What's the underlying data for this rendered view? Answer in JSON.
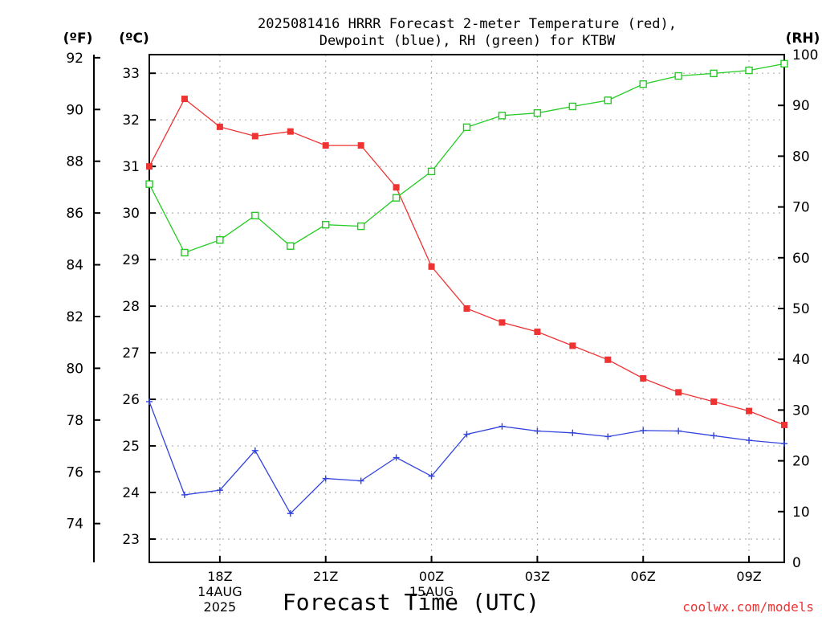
{
  "chart_data": {
    "type": "line",
    "title_line1": "2025081416 HRRR Forecast 2-meter Temperature (red),",
    "title_line2": "Dewpoint (blue), RH (green) for KTBW",
    "xlabel": "Forecast Time (UTC)",
    "watermark": "coolwx.com/models",
    "unit_f": "(ºF)",
    "unit_c": "(ºC)",
    "unit_rh": "(RH)",
    "x": [
      "16Z",
      "17Z",
      "18Z",
      "19Z",
      "20Z",
      "21Z",
      "22Z",
      "23Z",
      "00Z",
      "01Z",
      "02Z",
      "03Z",
      "04Z",
      "05Z",
      "06Z",
      "07Z",
      "08Z",
      "09Z",
      "10Z"
    ],
    "x_ticks": [
      {
        "index": 2,
        "label": "18Z",
        "date1": "14AUG",
        "date2": "2025"
      },
      {
        "index": 5,
        "label": "21Z"
      },
      {
        "index": 8,
        "label": "00Z",
        "date1": "15AUG"
      },
      {
        "index": 11,
        "label": "03Z"
      },
      {
        "index": 14,
        "label": "06Z"
      },
      {
        "index": 17,
        "label": "09Z"
      }
    ],
    "series": [
      {
        "name": "Temperature",
        "axis": "c",
        "color": "#ee3333",
        "marker": "filled-square",
        "values": [
          31.0,
          32.45,
          31.85,
          31.65,
          31.75,
          31.45,
          31.45,
          30.55,
          28.85,
          27.95,
          27.65,
          27.45,
          27.15,
          26.85,
          26.45,
          26.15,
          25.95,
          25.75,
          25.45
        ]
      },
      {
        "name": "Dewpoint",
        "axis": "c",
        "color": "#3344dd",
        "marker": "plus",
        "values": [
          25.95,
          23.95,
          24.05,
          24.9,
          23.55,
          24.3,
          24.25,
          24.75,
          24.35,
          25.25,
          25.42,
          25.32,
          25.28,
          25.2,
          25.33,
          25.32,
          25.22,
          25.12,
          25.05
        ]
      },
      {
        "name": "RH",
        "axis": "rh",
        "color": "#22cc22",
        "marker": "open-square",
        "values": [
          74.5,
          61.0,
          63.5,
          68.3,
          62.3,
          66.5,
          66.2,
          71.8,
          77.0,
          85.7,
          88.0,
          88.5,
          89.8,
          91.0,
          94.2,
          95.8,
          96.3,
          96.9,
          98.2
        ]
      }
    ],
    "y_c": {
      "ticks": [
        23,
        24,
        25,
        26,
        27,
        28,
        29,
        30,
        31,
        32,
        33
      ],
      "range": [
        22.5,
        33.4
      ]
    },
    "y_f": {
      "ticks": [
        74,
        76,
        78,
        80,
        82,
        84,
        86,
        88,
        90,
        92
      ]
    },
    "y_rh": {
      "ticks": [
        0,
        10,
        20,
        30,
        40,
        50,
        60,
        70,
        80,
        90,
        100
      ],
      "range": [
        0,
        100
      ]
    },
    "grid": true
  }
}
